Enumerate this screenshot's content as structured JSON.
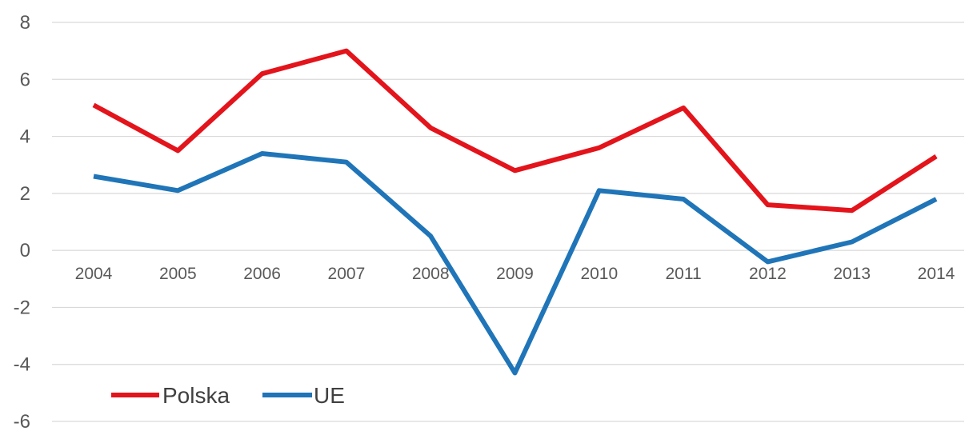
{
  "chart_data": {
    "type": "line",
    "title": "",
    "xlabel": "",
    "ylabel": "",
    "categories": [
      "2004",
      "2005",
      "2006",
      "2007",
      "2008",
      "2009",
      "2010",
      "2011",
      "2012",
      "2013",
      "2014"
    ],
    "ylim": [
      -6,
      8
    ],
    "yticks": [
      8,
      6,
      4,
      2,
      0,
      -2,
      -4,
      -6
    ],
    "grid": true,
    "legend_position": "bottom-left",
    "series": [
      {
        "name": "Polska",
        "color": "#E3141B",
        "values": [
          5.1,
          3.5,
          6.2,
          7.0,
          4.3,
          2.8,
          3.6,
          5.0,
          1.6,
          1.4,
          3.3
        ]
      },
      {
        "name": "UE",
        "color": "#1F75B8",
        "values": [
          2.6,
          2.1,
          3.4,
          3.1,
          0.5,
          -4.3,
          2.1,
          1.8,
          -0.4,
          0.3,
          1.8
        ]
      }
    ]
  }
}
